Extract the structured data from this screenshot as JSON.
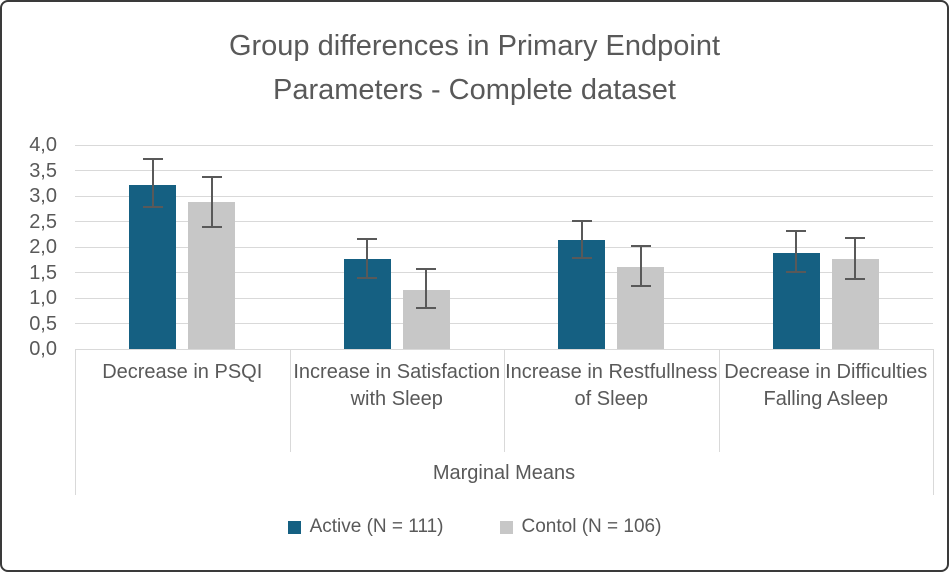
{
  "chart_data": {
    "type": "bar",
    "title": "Group differences in Primary Endpoint Parameters - Complete dataset",
    "title_lines": [
      "Group differences in Primary Endpoint",
      "Parameters - Complete dataset"
    ],
    "categories": [
      "Decrease in PSQI",
      "Increase in Satisfaction with Sleep",
      "Increase in Restfullness of Sleep",
      "Decrease in Difficulties Falling Asleep"
    ],
    "xlabel": "Marginal Means",
    "ylabel": "",
    "ylim": [
      0,
      4
    ],
    "y_tick_step": 0.5,
    "y_tick_labels": [
      "0,0",
      "0,5",
      "1,0",
      "1,5",
      "2,0",
      "2,5",
      "3,0",
      "3,5",
      "4,0"
    ],
    "decimal_separator": "comma",
    "grid": true,
    "legend_position": "bottom",
    "series": [
      {
        "name": "Active (N = 111)",
        "color": "#156082",
        "values": [
          3.22,
          1.76,
          2.14,
          1.89
        ],
        "error_low": [
          2.78,
          1.39,
          1.78,
          1.51
        ],
        "error_high": [
          3.72,
          2.16,
          2.51,
          2.31
        ]
      },
      {
        "name": "Contol (N = 106)",
        "color": "#C7C7C7",
        "values": [
          2.88,
          1.16,
          1.61,
          1.76
        ],
        "error_low": [
          2.4,
          0.8,
          1.24,
          1.37
        ],
        "error_high": [
          3.38,
          1.57,
          2.02,
          2.18
        ]
      }
    ],
    "colors": {
      "text": "#595959",
      "gridline": "#D9D9D9",
      "error_bar": "#595959",
      "frame_border": "#3A3A3A"
    }
  }
}
